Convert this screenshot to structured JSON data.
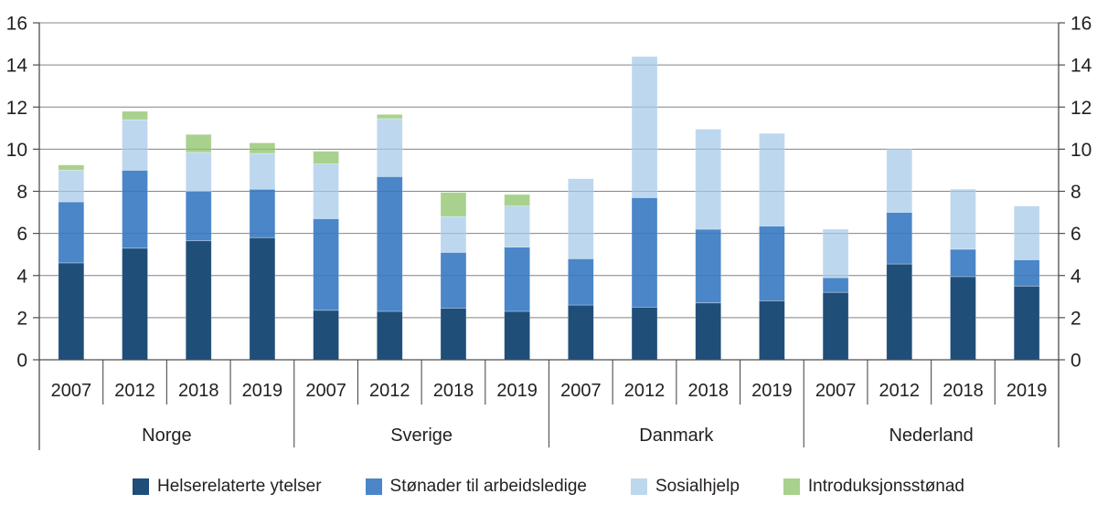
{
  "chart_data": {
    "type": "bar",
    "stacked": true,
    "title": "",
    "xlabel": "",
    "ylabel": "",
    "ylim": [
      0,
      16
    ],
    "ytick_step": 2,
    "grid": true,
    "y_axis_sides": [
      "left",
      "right"
    ],
    "legend_position": "bottom",
    "groups": [
      "Norge",
      "Sverige",
      "Danmark",
      "Nederland"
    ],
    "years_per_group": [
      "2007",
      "2012",
      "2018",
      "2019"
    ],
    "bar_order_note": "values arrays hold 16 bars: each group's years in sequence",
    "series": [
      {
        "name": "Helserelaterte ytelser",
        "color": "#1f4e79",
        "values": [
          4.6,
          5.3,
          5.65,
          5.8,
          2.35,
          2.3,
          2.45,
          2.3,
          2.6,
          2.5,
          2.7,
          2.8,
          3.2,
          4.55,
          3.95,
          3.5
        ]
      },
      {
        "name": "Stønader til arbeidsledige",
        "color": "#4a86c8",
        "values": [
          2.9,
          3.7,
          2.35,
          2.3,
          4.35,
          6.4,
          2.65,
          3.05,
          2.2,
          5.2,
          3.5,
          3.55,
          0.7,
          2.45,
          1.3,
          1.25
        ]
      },
      {
        "name": "Sosialhjelp",
        "color": "#bdd7ee",
        "values": [
          1.5,
          2.4,
          1.85,
          1.7,
          2.6,
          2.75,
          1.7,
          1.95,
          3.8,
          6.7,
          4.75,
          4.4,
          2.3,
          3.0,
          2.85,
          2.55
        ]
      },
      {
        "name": "Introduksjonsstønad",
        "color": "#a9d18e",
        "values": [
          0.25,
          0.4,
          0.85,
          0.5,
          0.6,
          0.2,
          1.15,
          0.55,
          0,
          0,
          0,
          0,
          0,
          0,
          0,
          0
        ]
      }
    ],
    "colors": {
      "gridline": "#9a9a9a",
      "axis": "#4d4d4d",
      "text": "#231f20"
    }
  }
}
